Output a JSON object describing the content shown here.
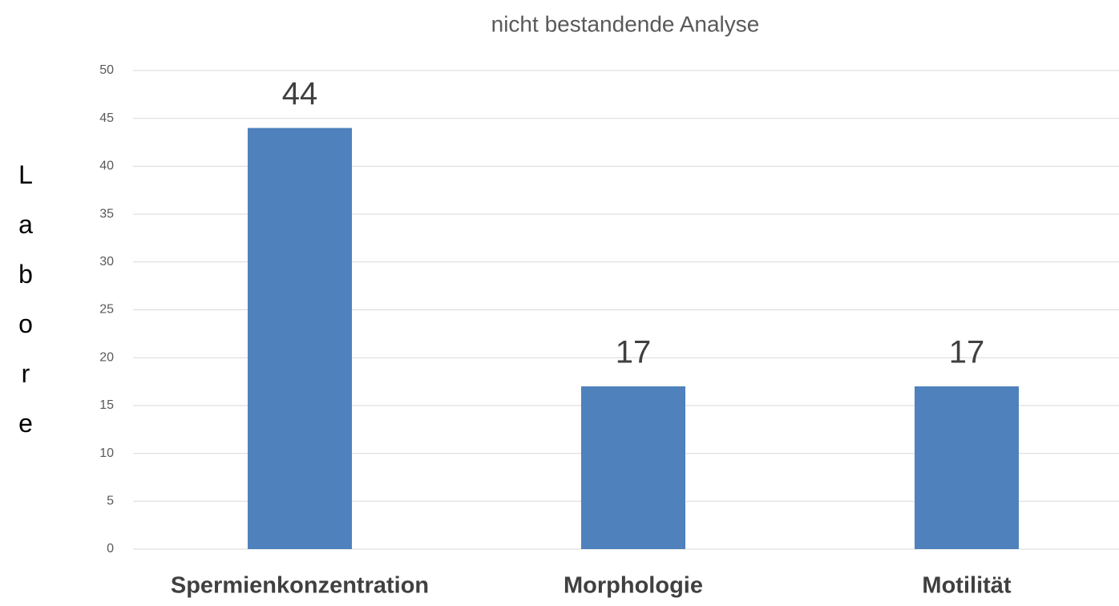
{
  "chart_data": {
    "type": "bar",
    "title": "nicht bestandende Analyse",
    "y_label": "Labore",
    "categories": [
      "Spermienkonzentration",
      "Morphologie",
      "Motilität"
    ],
    "values": [
      44,
      17,
      17
    ],
    "color": "#4f81bd",
    "ylim": [
      0,
      50
    ],
    "yticks": [
      0,
      5,
      10,
      15,
      20,
      25,
      30,
      35,
      40,
      45,
      50
    ],
    "grid": true
  }
}
